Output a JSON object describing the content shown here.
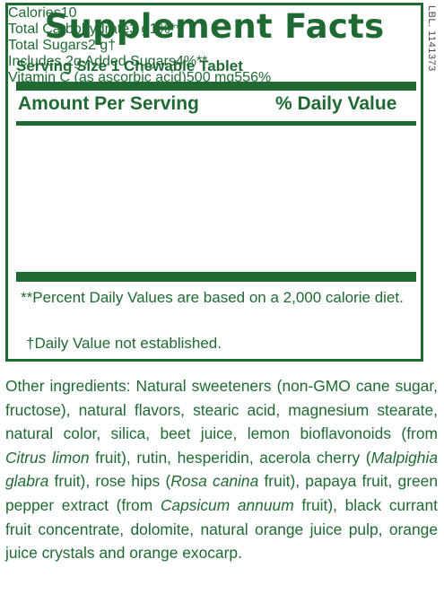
{
  "label": {
    "title": "Supplement Facts",
    "serving_size": "Serving Size 1 Chewable Tablet",
    "header": {
      "amount": "Amount Per Serving",
      "dv": "% Daily Value"
    },
    "rows": [
      {
        "name": "Calories",
        "amount": "10"
      },
      {
        "name": "Total Carbohydrate",
        "amount": "3 g",
        "dv": "1%**"
      },
      {
        "name": "Total Sugars",
        "amount": "2 g",
        "dv": "†"
      },
      {
        "name": "Includes 2g Added Sugars",
        "dv": "4%**"
      },
      {
        "name": "Vitamin C (as ascorbic acid)",
        "amount": "500 mg",
        "dv": "556%"
      }
    ],
    "footnotes": [
      "**Percent Daily Values are based on a 2,000 calorie diet.",
      "†Daily Value not established."
    ]
  },
  "side_code": "LBL. 1141373",
  "ingredients": [
    "Other ingredients: Natural sweeteners (non-GMO cane sugar, fructose), natural flavors, stearic acid, magnesium stearate, natural color, silica, beet juice, lemon bioflavonoids (from ",
    {
      "text": "Citrus limon",
      "style": "italic"
    },
    " fruit), rutin, hesperidin, acerola cherry (",
    {
      "text": "Malpighia glabra",
      "style": "italic"
    },
    " fruit), rose hips (",
    {
      "text": "Rosa canina",
      "style": "italic"
    },
    " fruit), papaya fruit, green pepper extract (from ",
    {
      "text": "Capsicum annuum",
      "style": "italic"
    },
    " fruit), black currant fruit concentrate, dolomite, natural orange juice pulp, orange juice crystals and orange exocarp."
  ]
}
